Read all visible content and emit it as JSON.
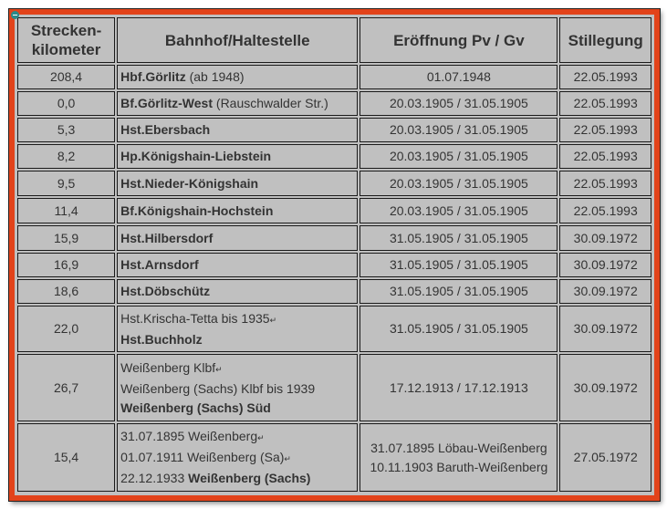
{
  "headers": [
    "Strecken-\nkilometer",
    "Bahnhof/Haltestelle",
    "Eröffnung Pv / Gv",
    "Stillegung"
  ],
  "header_lines": [
    [
      "Strecken-",
      "kilometer"
    ],
    [
      "Bahnhof/Haltestelle"
    ],
    [
      "Eröffnung Pv / Gv"
    ],
    [
      "Stillegung"
    ]
  ],
  "accent_color": "#e2431a",
  "rows": [
    {
      "km": "208,4",
      "station": [
        [
          {
            "t": "Hbf.Görlitz",
            "b": true
          },
          {
            "t": " (ab 1948)",
            "b": false
          }
        ]
      ],
      "opening": [
        "01.07.1948"
      ],
      "closing": "22.05.1993"
    },
    {
      "km": "0,0",
      "station": [
        [
          {
            "t": "Bf.Görlitz-West",
            "b": true
          },
          {
            "t": " (Rauschwalder Str.)",
            "b": false
          }
        ]
      ],
      "opening": [
        "20.03.1905 / 31.05.1905"
      ],
      "closing": "22.05.1993"
    },
    {
      "km": "5,3",
      "station": [
        [
          {
            "t": "Hst.Ebersbach",
            "b": true
          }
        ]
      ],
      "opening": [
        "20.03.1905 / 31.05.1905"
      ],
      "closing": "22.05.1993"
    },
    {
      "km": "8,2",
      "station": [
        [
          {
            "t": "Hp.Königshain-Liebstein",
            "b": true
          }
        ]
      ],
      "opening": [
        "20.03.1905 / 31.05.1905"
      ],
      "closing": "22.05.1993"
    },
    {
      "km": "9,5",
      "station": [
        [
          {
            "t": "Hst.Nieder-Königshain",
            "b": true
          }
        ]
      ],
      "opening": [
        "20.03.1905 / 31.05.1905"
      ],
      "closing": "22.05.1993"
    },
    {
      "km": "11,4",
      "station": [
        [
          {
            "t": "Bf.Königshain-Hochstein",
            "b": true
          }
        ]
      ],
      "opening": [
        "20.03.1905 / 31.05.1905"
      ],
      "closing": "22.05.1993"
    },
    {
      "km": "15,9",
      "station": [
        [
          {
            "t": "Hst.Hilbersdorf",
            "b": true
          }
        ]
      ],
      "opening": [
        "31.05.1905 / 31.05.1905"
      ],
      "closing": "30.09.1972"
    },
    {
      "km": "16,9",
      "station": [
        [
          {
            "t": "Hst.Arnsdorf",
            "b": true
          }
        ]
      ],
      "opening": [
        "31.05.1905 / 31.05.1905"
      ],
      "closing": "30.09.1972"
    },
    {
      "km": "18,6",
      "station": [
        [
          {
            "t": "Hst.Döbschütz",
            "b": true
          }
        ]
      ],
      "opening": [
        "31.05.1905 / 31.05.1905"
      ],
      "closing": "30.09.1972"
    },
    {
      "km": "22,0",
      "station": [
        [
          {
            "t": "Hst.Krischa-Tetta bis 1935",
            "b": false,
            "ret": true
          }
        ],
        [
          {
            "t": "Hst.Buchholz",
            "b": true
          }
        ]
      ],
      "opening": [
        "31.05.1905 / 31.05.1905"
      ],
      "closing": "30.09.1972"
    },
    {
      "km": "26,7",
      "station": [
        [
          {
            "t": "Weißenberg Klbf",
            "b": false,
            "ret": true
          }
        ],
        [
          {
            "t": "Weißenberg (Sachs) Klbf bis 1939",
            "b": false
          }
        ],
        [
          {
            "t": "Weißenberg (Sachs) Süd",
            "b": true
          }
        ]
      ],
      "opening": [
        "17.12.1913 / 17.12.1913"
      ],
      "closing": "30.09.1972"
    },
    {
      "km": "15,4",
      "station": [
        [
          {
            "t": "31.07.1895 Weißenberg",
            "b": false,
            "ret": true
          }
        ],
        [
          {
            "t": "01.07.1911 Weißenberg (Sa)",
            "b": false,
            "ret": true
          }
        ],
        [
          {
            "t": "22.12.1933 ",
            "b": false
          },
          {
            "t": "Weißenberg (Sachs)",
            "b": true
          }
        ]
      ],
      "opening": [
        "31.07.1895 Löbau-Weißenberg",
        "10.11.1903 Baruth-Weißenberg"
      ],
      "closing": "27.05.1972"
    }
  ]
}
